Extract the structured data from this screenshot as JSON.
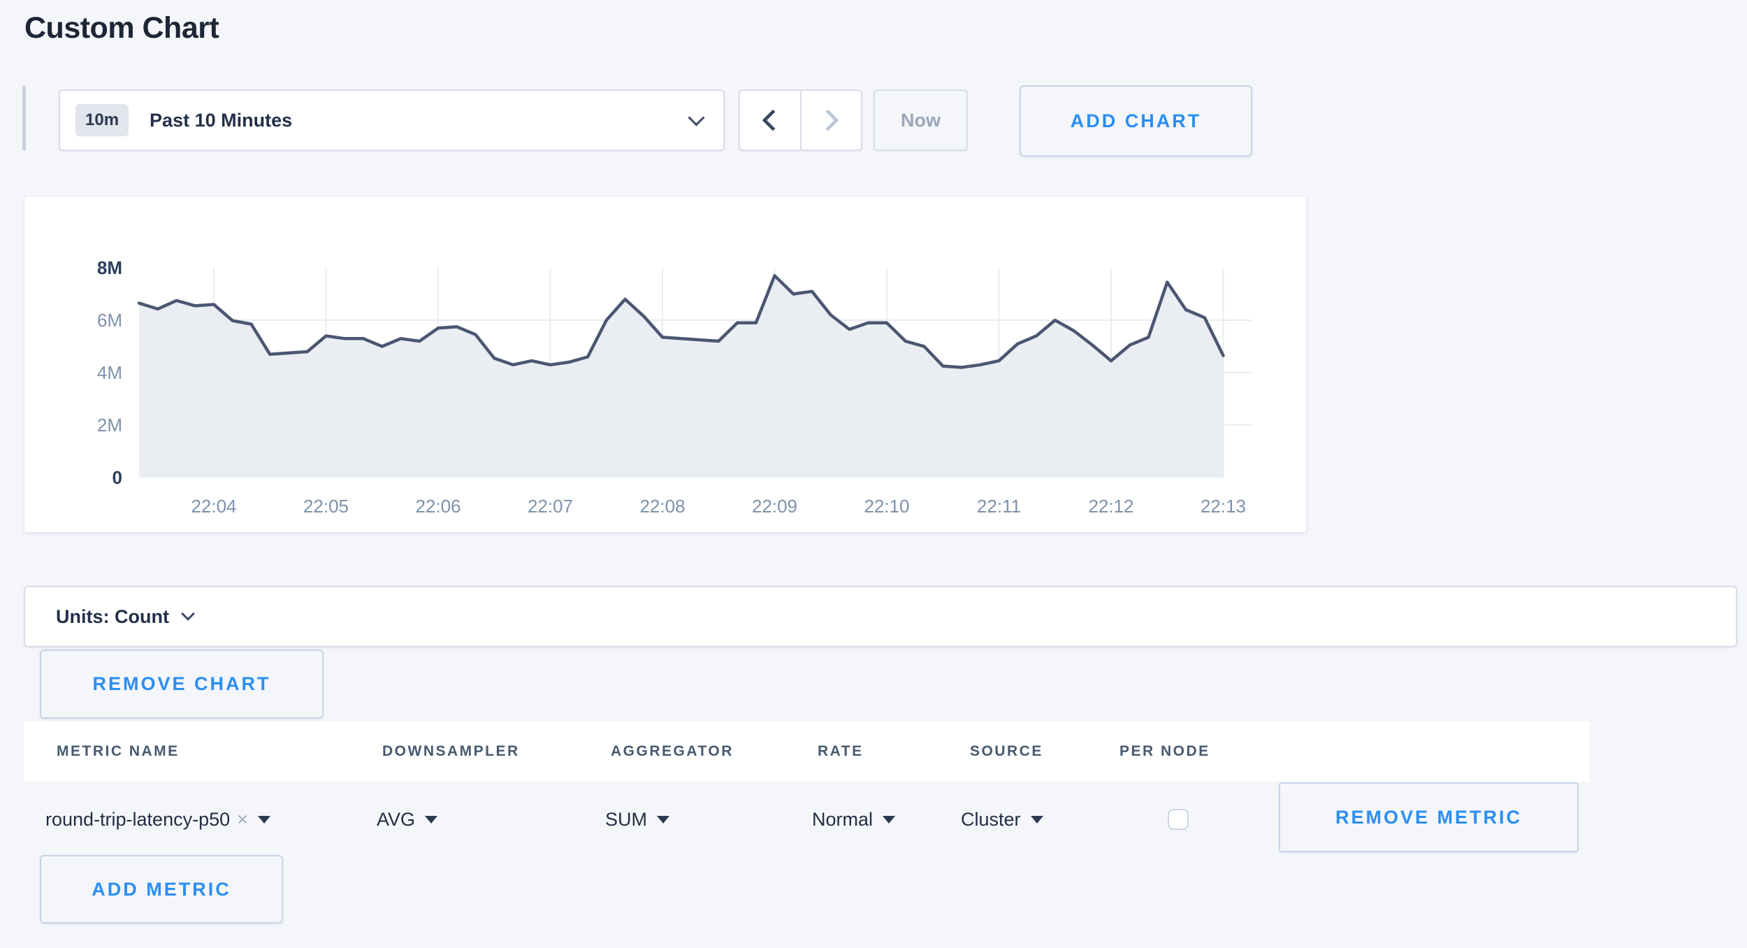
{
  "page": {
    "title": "Custom Chart",
    "background_color": "#f4f6fa",
    "accent_blue": "#2b8ef2"
  },
  "toolbar": {
    "time_window_badge": "10m",
    "time_window_label": "Past 10 Minutes",
    "now_label": "Now",
    "add_chart_label": "ADD CHART"
  },
  "units_bar": {
    "label": "Units: Count"
  },
  "chart_actions": {
    "remove_chart_label": "REMOVE CHART"
  },
  "chart_data": {
    "type": "area",
    "title": "",
    "unit": "Count",
    "x_start": "22:03:20",
    "x_end": "22:13:00",
    "sample_interval_s": 10,
    "x_ticks": [
      "22:04",
      "22:05",
      "22:06",
      "22:07",
      "22:08",
      "22:09",
      "22:10",
      "22:11",
      "22:12",
      "22:13"
    ],
    "y_ticks": [
      "0",
      "2M",
      "4M",
      "6M",
      "8M"
    ],
    "ylim_millions": [
      0,
      8
    ],
    "grid": "on",
    "legend": "none",
    "line_color": "#4b5671",
    "fill_color": "#eaedf2",
    "series": [
      {
        "name": "round-trip-latency-p50",
        "values_millions": [
          6.65,
          6.43,
          6.75,
          6.55,
          6.6,
          5.98,
          5.85,
          4.7,
          4.75,
          4.8,
          5.4,
          5.3,
          5.3,
          5.0,
          5.3,
          5.2,
          5.7,
          5.75,
          5.45,
          4.55,
          4.3,
          4.45,
          4.3,
          4.4,
          4.6,
          6.0,
          6.8,
          6.15,
          5.35,
          5.3,
          5.25,
          5.2,
          5.9,
          5.9,
          7.7,
          7.0,
          7.1,
          6.2,
          5.65,
          5.9,
          5.9,
          5.2,
          5.0,
          4.25,
          4.2,
          4.3,
          4.45,
          5.1,
          5.4,
          6.0,
          5.6,
          5.05,
          4.45,
          5.05,
          5.35,
          7.45,
          6.4,
          6.1,
          4.65
        ]
      }
    ]
  },
  "metric_table": {
    "columns": [
      {
        "label": "METRIC NAME"
      },
      {
        "label": "DOWNSAMPLER"
      },
      {
        "label": "AGGREGATOR"
      },
      {
        "label": "RATE"
      },
      {
        "label": "SOURCE"
      },
      {
        "label": "PER NODE"
      }
    ],
    "row": {
      "metric_name": "round-trip-latency-p50",
      "clear_icon": "×",
      "downsampler": "AVG",
      "aggregator": "SUM",
      "rate": "Normal",
      "source": "Cluster",
      "per_node_checked": false,
      "remove_label": "REMOVE METRIC"
    },
    "add_metric_label": "ADD METRIC"
  }
}
